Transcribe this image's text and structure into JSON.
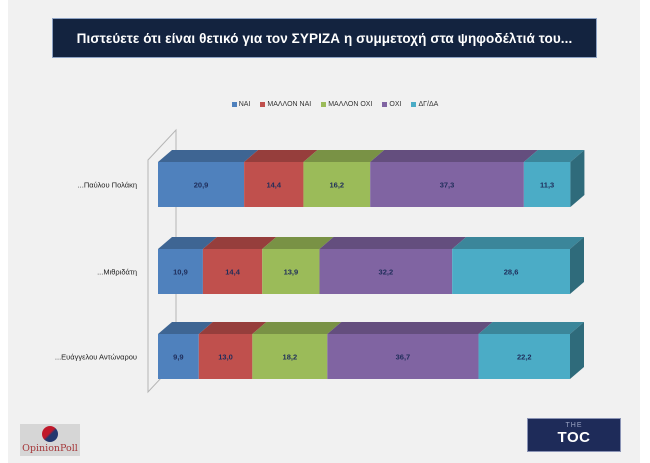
{
  "chart_data": {
    "type": "bar",
    "orientation": "horizontal",
    "stacked": true,
    "style": "3d-100%-stacked",
    "title": "Πιστεύετε ότι είναι θετικό για τον ΣΥΡΙΖΑ η συμμετοχή στα ψηφοδέλτιά του...",
    "categories": [
      "...Παύλου Πολάκη",
      "...Μιθριδάτη",
      "...Ευάγγελου Αντώναρου"
    ],
    "series": [
      {
        "name": "ΝΑΙ",
        "color": "#4f81bd",
        "values": [
          20.9,
          10.9,
          9.9
        ],
        "labels": [
          "20,9",
          "10,9",
          "9,9"
        ]
      },
      {
        "name": "ΜΑΛΛΟΝ ΝΑΙ",
        "color": "#c0504d",
        "values": [
          14.4,
          14.4,
          13.0
        ],
        "labels": [
          "14,4",
          "14,4",
          "13,0"
        ]
      },
      {
        "name": "ΜΑΛΛΟΝ ΟΧΙ",
        "color": "#9bbb59",
        "values": [
          16.2,
          13.9,
          18.2
        ],
        "labels": [
          "16,2",
          "13,9",
          "18,2"
        ]
      },
      {
        "name": "ΟΧΙ",
        "color": "#8064a2",
        "values": [
          37.3,
          32.2,
          36.7
        ],
        "labels": [
          "37,3",
          "32,2",
          "36,7"
        ]
      },
      {
        "name": "ΔΓ/ΔΑ",
        "color": "#4bacc6",
        "values": [
          11.3,
          28.6,
          22.2
        ],
        "labels": [
          "11,3",
          "28,6",
          "22,2"
        ]
      }
    ],
    "xlabel": "",
    "ylabel": "",
    "xlim": [
      0,
      100
    ],
    "legend": "top-center",
    "grid": false
  },
  "logos": {
    "left": "OpinionPoll",
    "right_small": "THE",
    "right_big": "TOC"
  }
}
